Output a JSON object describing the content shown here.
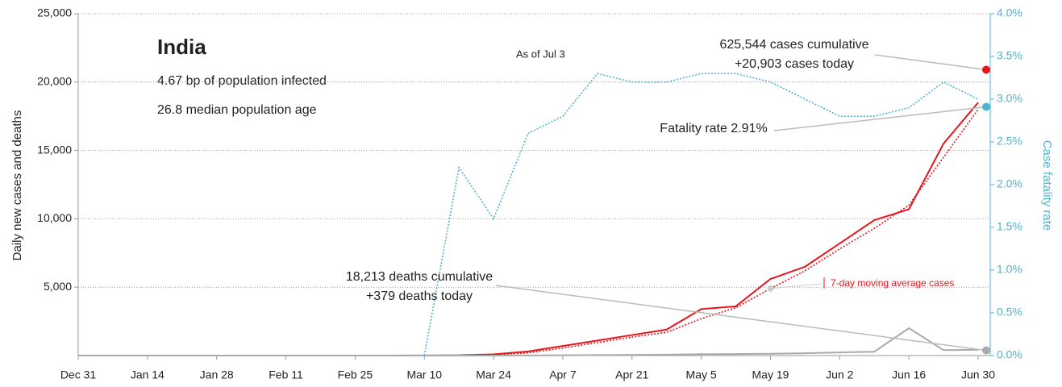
{
  "chart_data": {
    "type": "line",
    "title": "India",
    "subtitle_lines": [
      "4.67 bp of population infected",
      "26.8 median population age"
    ],
    "note": "As of Jul 3",
    "ylabel": "Daily new cases and deaths",
    "y2label": "Case fatality rate",
    "categories": [
      "Dec 31",
      null,
      "Jan 14",
      null,
      "Jan 28",
      null,
      "Feb 11",
      null,
      "Feb 25",
      null,
      "Mar 10",
      null,
      "Mar 24",
      null,
      "Apr 7",
      null,
      "Apr 21",
      null,
      "May 5",
      null,
      "May 19",
      null,
      "Jun 2",
      null,
      "Jun 16",
      null,
      "Jun 30"
    ],
    "series": [
      {
        "name": "Daily new cases",
        "color": "#e8141c",
        "style": "solid",
        "axis": "y",
        "values": [
          0,
          0,
          0,
          0,
          0,
          0,
          0,
          0,
          0,
          0,
          10,
          20,
          90,
          300,
          700,
          1100,
          1500,
          1900,
          3400,
          3600,
          5600,
          6500,
          8200,
          9900,
          10700,
          15500,
          18500
        ]
      },
      {
        "name": "7-day moving average cases",
        "color": "#e8141c",
        "style": "dotted",
        "axis": "y",
        "values": [
          0,
          0,
          0,
          0,
          0,
          0,
          0,
          0,
          0,
          0,
          5,
          15,
          60,
          200,
          550,
          950,
          1350,
          1700,
          2700,
          3500,
          4900,
          6200,
          7800,
          9300,
          11000,
          14500,
          18000
        ]
      },
      {
        "name": "Daily new deaths",
        "color": "#aaaaaa",
        "style": "solid",
        "axis": "y",
        "values": [
          0,
          0,
          0,
          0,
          0,
          0,
          0,
          0,
          0,
          0,
          0,
          1,
          2,
          10,
          20,
          35,
          50,
          70,
          100,
          110,
          130,
          170,
          230,
          280,
          2003,
          400,
          420
        ]
      },
      {
        "name": "Case fatality rate",
        "color": "#4fb3cf",
        "style": "dotted",
        "axis": "y2",
        "values": [
          null,
          null,
          null,
          null,
          null,
          null,
          null,
          null,
          null,
          null,
          0,
          2.2,
          1.6,
          2.6,
          2.8,
          3.3,
          3.2,
          3.2,
          3.3,
          3.3,
          3.2,
          3.0,
          2.8,
          2.8,
          2.9,
          3.2,
          3.0
        ]
      }
    ],
    "annotations": [
      {
        "lines": [
          "625,544 cases cumulative",
          "+20,903 cases today"
        ],
        "value": 20903,
        "axis": "y",
        "color": "#e8141c"
      },
      {
        "lines": [
          "Fatality rate 2.91%"
        ],
        "value": 2.91,
        "axis": "y2",
        "color": "#4fb3cf"
      },
      {
        "lines": [
          "18,213 deaths cumulative",
          "+379 deaths today"
        ],
        "value": 379,
        "axis": "y",
        "color": "#aaaaaa"
      }
    ],
    "ylim": [
      0,
      25000
    ],
    "yticks": [
      {
        "value": 5000,
        "label": "5,000"
      },
      {
        "value": 10000,
        "label": "10,000"
      },
      {
        "value": 15000,
        "label": "15,000"
      },
      {
        "value": 20000,
        "label": "20,000"
      },
      {
        "value": 25000,
        "label": "25,000"
      }
    ],
    "y2lim": [
      0,
      4
    ],
    "y2ticks": [
      {
        "value": 0,
        "label": "0.0%"
      },
      {
        "value": 0.5,
        "label": "0.5%"
      },
      {
        "value": 1,
        "label": "1.0%"
      },
      {
        "value": 1.5,
        "label": "1.5%"
      },
      {
        "value": 2,
        "label": "2.0%"
      },
      {
        "value": 2.5,
        "label": "2.5%"
      },
      {
        "value": 3,
        "label": "3.0%"
      },
      {
        "value": 3.5,
        "label": "3.5%"
      },
      {
        "value": 4,
        "label": "4.0%"
      }
    ],
    "grid": true
  }
}
